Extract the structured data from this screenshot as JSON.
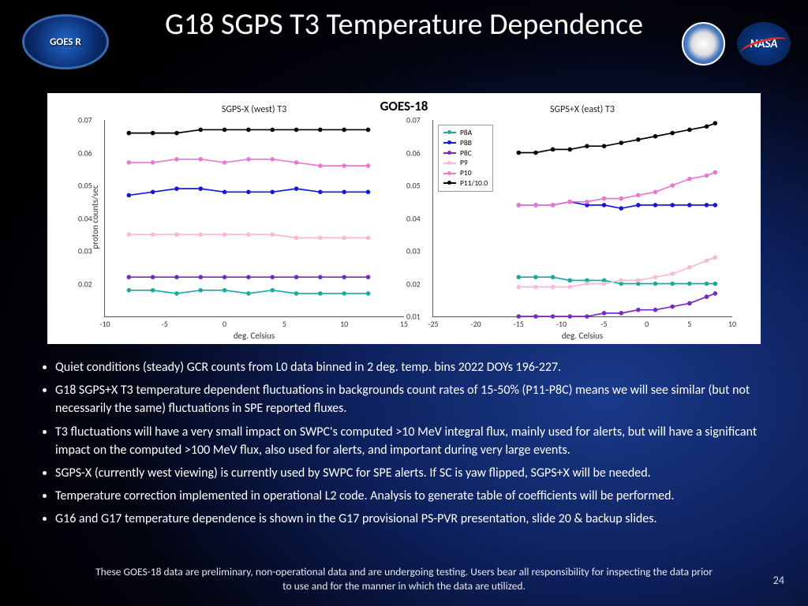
{
  "title": "G18 SGPS T3 Temperature Dependence",
  "logos": {
    "goesr": "GOES R",
    "noaa": "",
    "nasa": "NASA"
  },
  "chart": {
    "suptitle": "GOES-18",
    "ylabel": "proton counts/sec",
    "xlabel": "deg. Celsius",
    "series_meta": [
      {
        "name": "P8A",
        "color": "#1aa99a"
      },
      {
        "name": "P8B",
        "color": "#1818d8"
      },
      {
        "name": "P8C",
        "color": "#7a28c8"
      },
      {
        "name": "P9",
        "color": "#f8b8d8"
      },
      {
        "name": "P10",
        "color": "#e878d0"
      },
      {
        "name": "P11/10.0",
        "color": "#000000"
      }
    ],
    "left": {
      "title": "SGPS-X (west) T3",
      "xlim": [
        -10,
        15
      ],
      "ylim": [
        0.01,
        0.07
      ],
      "yticks": [
        0.02,
        0.03,
        0.04,
        0.05,
        0.06,
        0.07
      ],
      "xticks": [
        -10,
        -5,
        0,
        5,
        10,
        15
      ],
      "x": [
        -8,
        -6,
        -4,
        -2,
        0,
        2,
        4,
        6,
        8,
        10,
        12
      ],
      "series": {
        "P8A": [
          0.018,
          0.018,
          0.017,
          0.018,
          0.018,
          0.017,
          0.018,
          0.017,
          0.017,
          0.017,
          0.017
        ],
        "P8B": [
          0.047,
          0.048,
          0.049,
          0.049,
          0.048,
          0.048,
          0.048,
          0.049,
          0.048,
          0.048,
          0.048
        ],
        "P8C": [
          0.022,
          0.022,
          0.022,
          0.022,
          0.022,
          0.022,
          0.022,
          0.022,
          0.022,
          0.022,
          0.022
        ],
        "P9": [
          0.035,
          0.035,
          0.035,
          0.035,
          0.035,
          0.035,
          0.035,
          0.034,
          0.034,
          0.034,
          0.034
        ],
        "P10": [
          0.057,
          0.057,
          0.058,
          0.058,
          0.057,
          0.058,
          0.058,
          0.057,
          0.056,
          0.056,
          0.056
        ],
        "P11/10.0": [
          0.066,
          0.066,
          0.066,
          0.067,
          0.067,
          0.067,
          0.067,
          0.067,
          0.067,
          0.067,
          0.067
        ]
      }
    },
    "right": {
      "title": "SGPS+X (east) T3",
      "xlim": [
        -25,
        10
      ],
      "ylim": [
        0.01,
        0.07
      ],
      "yticks": [
        0.01,
        0.02,
        0.03,
        0.04,
        0.05,
        0.06,
        0.07
      ],
      "xticks": [
        -25,
        -20,
        -15,
        -10,
        -5,
        0,
        5,
        10
      ],
      "x": [
        -15,
        -13,
        -11,
        -9,
        -7,
        -5,
        -3,
        -1,
        1,
        3,
        5,
        7,
        8
      ],
      "series": {
        "P8A": [
          0.022,
          0.022,
          0.022,
          0.021,
          0.021,
          0.021,
          0.02,
          0.02,
          0.02,
          0.02,
          0.02,
          0.02,
          0.02
        ],
        "P8B": [
          0.044,
          0.044,
          0.044,
          0.045,
          0.044,
          0.044,
          0.043,
          0.044,
          0.044,
          0.044,
          0.044,
          0.044,
          0.044
        ],
        "P8C": [
          0.01,
          0.01,
          0.01,
          0.01,
          0.01,
          0.011,
          0.011,
          0.012,
          0.012,
          0.013,
          0.014,
          0.016,
          0.017
        ],
        "P9": [
          0.019,
          0.019,
          0.019,
          0.019,
          0.02,
          0.02,
          0.021,
          0.021,
          0.022,
          0.023,
          0.025,
          0.027,
          0.028
        ],
        "P10": [
          0.044,
          0.044,
          0.044,
          0.045,
          0.045,
          0.046,
          0.046,
          0.047,
          0.048,
          0.05,
          0.052,
          0.053,
          0.054
        ],
        "P11/10.0": [
          0.06,
          0.06,
          0.061,
          0.061,
          0.062,
          0.062,
          0.063,
          0.064,
          0.065,
          0.066,
          0.067,
          0.068,
          0.069
        ]
      }
    }
  },
  "bullets": [
    "Quiet conditions (steady) GCR counts from L0 data binned in 2 deg. temp. bins 2022 DOYs 196-227.",
    "G18 SGPS+X T3 temperature dependent fluctuations in backgrounds count rates of 15-50% (P11-P8C) means we will see similar (but not necessarily the same) fluctuations in SPE reported fluxes.",
    "T3 fluctuations will have a very small impact on SWPC's computed >10 MeV integral flux, mainly used for alerts,  but will have a significant impact on the computed >100 MeV flux, also used for alerts, and important during very large events.",
    "SGPS-X (currently west viewing) is currently used by SWPC for SPE alerts. If SC is yaw flipped, SGPS+X will be needed.",
    "Temperature correction implemented in operational L2 code. Analysis to generate table of coefficients will be performed.",
    "G16 and G17 temperature dependence is shown in the G17 provisional PS-PVR presentation, slide 20 & backup slides."
  ],
  "footnote": "These GOES-18 data are preliminary, non-operational data and are undergoing testing. Users bear all responsibility for inspecting the data prior to use and for the manner in which the data are utilized.",
  "pagenum": "24"
}
